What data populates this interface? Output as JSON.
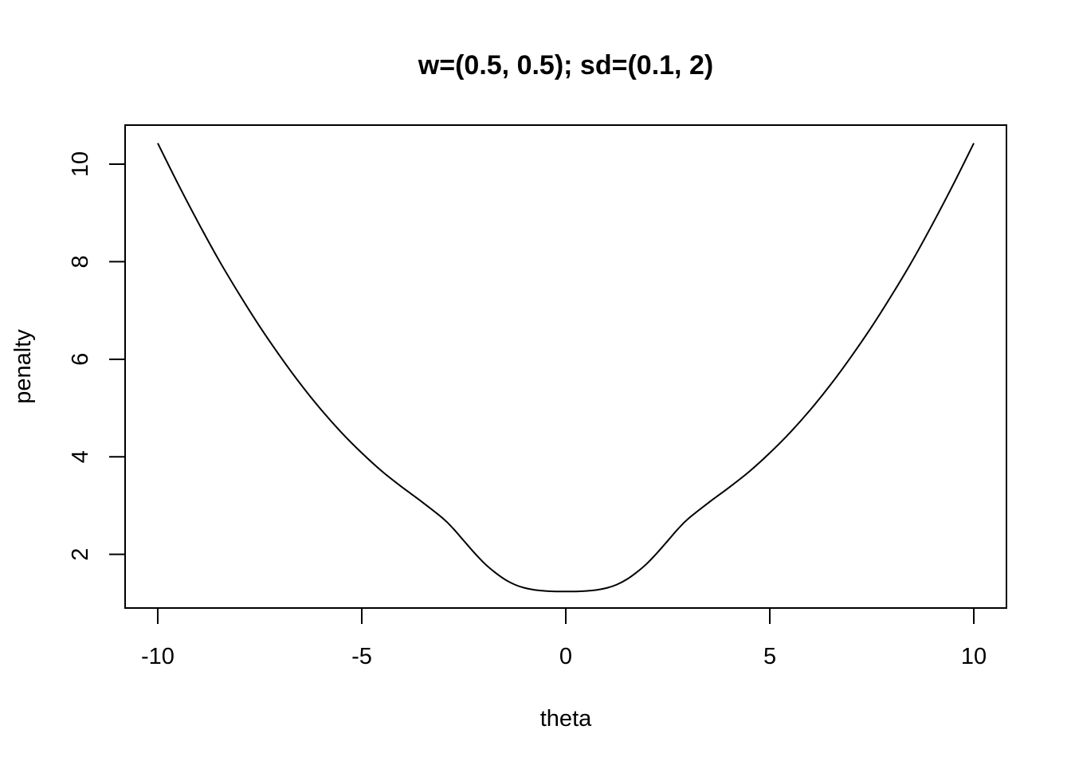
{
  "chart_data": {
    "type": "line",
    "title": "w=(0.5, 0.5); sd=(0.1, 2)",
    "xlabel": "theta",
    "ylabel": "penalty",
    "xlim": [
      -10.8,
      10.8
    ],
    "ylim": [
      0.9,
      10.8
    ],
    "xticks": [
      -10,
      -5,
      0,
      5,
      10
    ],
    "xtick_labels": [
      "-10",
      "-5",
      "0",
      "5",
      "10"
    ],
    "yticks": [
      2,
      4,
      6,
      8,
      10
    ],
    "ytick_labels": [
      "2",
      "4",
      "6",
      "8",
      "10"
    ],
    "grid": false,
    "series": [
      {
        "x": [
          -10,
          -9.5,
          -9,
          -8.5,
          -8,
          -7.5,
          -7,
          -6.5,
          -6,
          -5.5,
          -5,
          -4.5,
          -4,
          -3.5,
          -3,
          -2.75,
          -2.5,
          -2.25,
          -2,
          -1.75,
          -1.5,
          -1.25,
          -1,
          -0.75,
          -0.5,
          -0.25,
          0,
          0.25,
          0.5,
          0.75,
          1,
          1.25,
          1.5,
          1.75,
          2,
          2.25,
          2.5,
          2.75,
          3,
          3.5,
          4,
          4.5,
          5,
          5.5,
          6,
          6.5,
          7,
          7.5,
          8,
          8.5,
          9,
          9.5,
          10
        ],
        "y": [
          10.43,
          9.59,
          8.79,
          8.03,
          7.33,
          6.67,
          6.06,
          5.49,
          4.97,
          4.5,
          4.08,
          3.7,
          3.37,
          3.06,
          2.73,
          2.52,
          2.28,
          2.04,
          1.82,
          1.64,
          1.49,
          1.38,
          1.31,
          1.27,
          1.25,
          1.24,
          1.24,
          1.24,
          1.25,
          1.27,
          1.31,
          1.38,
          1.49,
          1.64,
          1.82,
          2.04,
          2.28,
          2.52,
          2.73,
          3.06,
          3.37,
          3.7,
          4.08,
          4.5,
          4.97,
          5.49,
          6.06,
          6.67,
          7.33,
          8.03,
          8.79,
          9.59,
          10.43
        ]
      }
    ]
  }
}
